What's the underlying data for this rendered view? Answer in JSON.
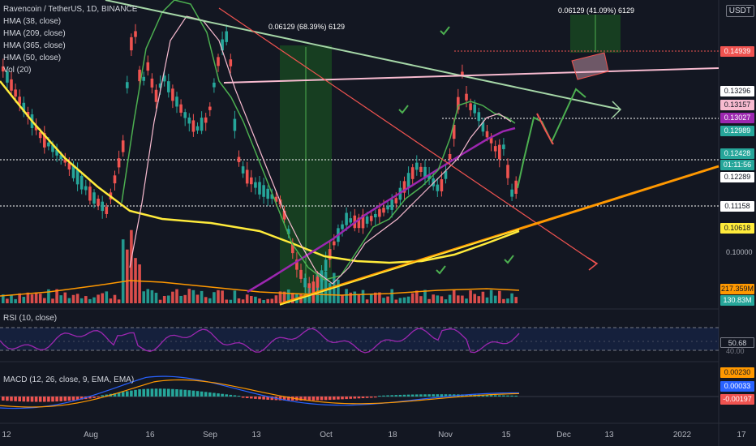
{
  "header": {
    "symbol_line": "Ravencoin / TetherUS, 1D, BINANCE",
    "indicators": [
      "HMA (38, close)",
      "HMA (209, close)",
      "HMA (365, close)",
      "HMA (50, close)",
      "Vol (20)"
    ],
    "currency": "USDT"
  },
  "panes": {
    "rsi_label": "RSI (10, close)",
    "macd_label": "MACD (12, 26, close, 9, EMA, EMA)"
  },
  "annotations": {
    "measure_left": "0.06129 (68.39%) 6129",
    "measure_right": "0.06129 (41.09%) 6129"
  },
  "chart_data": {
    "type": "candlestick",
    "x_axis_labels": [
      "12",
      "Aug",
      "16",
      "Sep",
      "13",
      "Oct",
      "18",
      "Nov",
      "15",
      "Dec",
      "13",
      "2022",
      "17"
    ],
    "y_axis_ticks": [
      "0.10000"
    ],
    "price_labels": [
      {
        "value": "0.14939",
        "bg": "#ef5350",
        "fg": "#ffffff"
      },
      {
        "value": "0.13296",
        "bg": "#ffffff",
        "fg": "#131722"
      },
      {
        "value": "0.13157",
        "bg": "#f8bbd0",
        "fg": "#131722"
      },
      {
        "value": "0.13027",
        "bg": "#9c27b0",
        "fg": "#ffffff"
      },
      {
        "value": "0.12989",
        "bg": "#26a69a",
        "fg": "#ffffff"
      },
      {
        "value": "0.12428",
        "bg": "#26a69a",
        "fg": "#ffffff"
      },
      {
        "value": "01:11:56",
        "bg": "#26a69a",
        "fg": "#ffffff"
      },
      {
        "value": "0.12289",
        "bg": "#ffffff",
        "fg": "#131722"
      },
      {
        "value": "0.11158",
        "bg": "#ffffff",
        "fg": "#131722"
      },
      {
        "value": "0.10618",
        "bg": "#ffeb3b",
        "fg": "#131722"
      },
      {
        "value": "217.359M",
        "bg": "#ff9800",
        "fg": "#131722"
      },
      {
        "value": "130.83M",
        "bg": "#26a69a",
        "fg": "#ffffff"
      }
    ],
    "rsi": {
      "value": "50.68",
      "levels": [
        "70.00",
        "40.00"
      ]
    },
    "macd": {
      "values": [
        "0.00230",
        "0.00033",
        "-0.00197"
      ]
    },
    "colors": {
      "up": "#26a69a",
      "down": "#ef5350",
      "hma38": "#4caf50",
      "hma209": "#ffeb3b",
      "hma365": "#9c27b0",
      "hma50": "#f8bbd0",
      "trend_green": "#a5d6a7",
      "trend_orange": "#ff9800",
      "trend_red": "#ef5350",
      "rsi": "#9c27b0"
    }
  }
}
